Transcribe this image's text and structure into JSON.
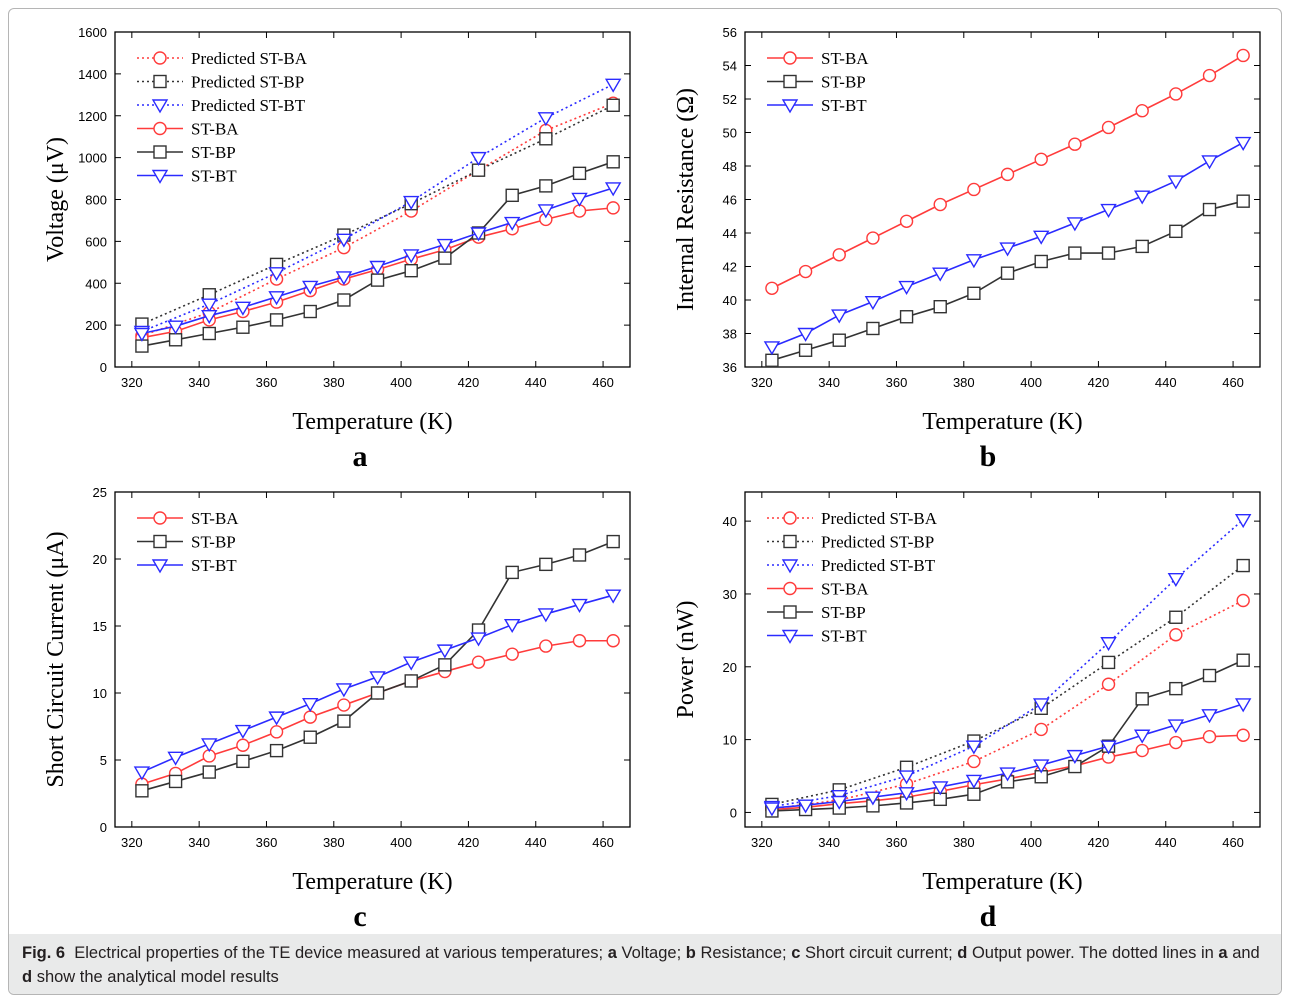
{
  "figure": {
    "panel_letters": [
      "a",
      "b",
      "c",
      "d"
    ],
    "caption": {
      "fig_label": "Fig. 6",
      "intro": "Electrical properties of the TE device measured at various temperatures;",
      "a_key": "a",
      "a_text": "Voltage;",
      "b_key": "b",
      "b_text": "Resistance;",
      "c_key": "c",
      "c_text": "Short circuit current;",
      "d_key": "d",
      "d_text": "Output power. The dotted lines in",
      "a2_key": "a",
      "and_text": "and",
      "d2_key": "d",
      "end_text": "show the analytical model results"
    }
  },
  "colors": {
    "ST-BA": "#ff3b3b",
    "ST-BP": "#333333",
    "ST-BT": "#2b2bff"
  },
  "chart_data": [
    {
      "type": "line",
      "panel": "a",
      "xlabel": "Temperature (K)",
      "ylabel": "Voltage (μV)",
      "xlim": [
        315,
        468
      ],
      "ylim": [
        0,
        1600
      ],
      "xticks": [
        320,
        340,
        360,
        380,
        400,
        420,
        440,
        460
      ],
      "yticks": [
        0,
        200,
        400,
        600,
        800,
        1000,
        1200,
        1400,
        1600
      ],
      "legend": "top-left",
      "series": [
        {
          "name": "Predicted ST-BA",
          "style": "dotted",
          "marker": "circle",
          "color": "ST-BA",
          "x": [
            323,
            343,
            363,
            383,
            403,
            423,
            443,
            463
          ],
          "y": [
            150,
            260,
            420,
            570,
            745,
            940,
            1130,
            1260
          ]
        },
        {
          "name": "Predicted ST-BP",
          "style": "dotted",
          "marker": "square",
          "color": "ST-BP",
          "x": [
            323,
            343,
            363,
            383,
            403,
            423,
            443,
            463
          ],
          "y": [
            205,
            345,
            490,
            630,
            780,
            940,
            1090,
            1250
          ]
        },
        {
          "name": "Predicted ST-BT",
          "style": "dotted",
          "marker": "triangle",
          "color": "ST-BT",
          "x": [
            323,
            343,
            363,
            383,
            403,
            423,
            443,
            463
          ],
          "y": [
            170,
            300,
            450,
            610,
            790,
            1000,
            1190,
            1350
          ]
        },
        {
          "name": "ST-BA",
          "style": "solid",
          "marker": "circle",
          "color": "ST-BA",
          "x": [
            323,
            333,
            343,
            353,
            363,
            373,
            383,
            393,
            403,
            413,
            423,
            433,
            443,
            453,
            463
          ],
          "y": [
            140,
            170,
            225,
            265,
            310,
            365,
            420,
            465,
            515,
            560,
            620,
            660,
            705,
            745,
            760
          ]
        },
        {
          "name": "ST-BP",
          "style": "solid",
          "marker": "square",
          "color": "ST-BP",
          "x": [
            323,
            333,
            343,
            353,
            363,
            373,
            383,
            393,
            403,
            413,
            423,
            433,
            443,
            453,
            463
          ],
          "y": [
            100,
            130,
            160,
            190,
            225,
            265,
            320,
            415,
            460,
            520,
            640,
            820,
            865,
            925,
            980
          ]
        },
        {
          "name": "ST-BT",
          "style": "solid",
          "marker": "triangle",
          "color": "ST-BT",
          "x": [
            323,
            333,
            343,
            353,
            363,
            373,
            383,
            393,
            403,
            413,
            423,
            433,
            443,
            453,
            463
          ],
          "y": [
            160,
            195,
            245,
            285,
            335,
            385,
            430,
            480,
            535,
            585,
            640,
            690,
            750,
            805,
            855
          ]
        }
      ]
    },
    {
      "type": "line",
      "panel": "b",
      "xlabel": "Temperature (K)",
      "ylabel": "Internal Resistance (Ω)",
      "xlim": [
        315,
        468
      ],
      "ylim": [
        36,
        56
      ],
      "xticks": [
        320,
        340,
        360,
        380,
        400,
        420,
        440,
        460
      ],
      "yticks": [
        36,
        38,
        40,
        42,
        44,
        46,
        48,
        50,
        52,
        54,
        56
      ],
      "legend": "top-left",
      "series": [
        {
          "name": "ST-BA",
          "style": "solid",
          "marker": "circle",
          "color": "ST-BA",
          "x": [
            323,
            333,
            343,
            353,
            363,
            373,
            383,
            393,
            403,
            413,
            423,
            433,
            443,
            453,
            463
          ],
          "y": [
            40.7,
            41.7,
            42.7,
            43.7,
            44.7,
            45.7,
            46.6,
            47.5,
            48.4,
            49.3,
            50.3,
            51.3,
            52.3,
            53.4,
            54.6
          ]
        },
        {
          "name": "ST-BP",
          "style": "solid",
          "marker": "square",
          "color": "ST-BP",
          "x": [
            323,
            333,
            343,
            353,
            363,
            373,
            383,
            393,
            403,
            413,
            423,
            433,
            443,
            453,
            463
          ],
          "y": [
            36.4,
            37.0,
            37.6,
            38.3,
            39.0,
            39.6,
            40.4,
            41.6,
            42.3,
            42.8,
            42.8,
            43.2,
            44.1,
            45.4,
            45.9
          ]
        },
        {
          "name": "ST-BT",
          "style": "solid",
          "marker": "triangle",
          "color": "ST-BT",
          "x": [
            323,
            333,
            343,
            353,
            363,
            373,
            383,
            393,
            403,
            413,
            423,
            433,
            443,
            453,
            463
          ],
          "y": [
            37.2,
            38.0,
            39.1,
            39.9,
            40.8,
            41.6,
            42.4,
            43.1,
            43.8,
            44.6,
            45.4,
            46.2,
            47.1,
            48.3,
            49.4
          ]
        }
      ]
    },
    {
      "type": "line",
      "panel": "c",
      "xlabel": "Temperature (K)",
      "ylabel": "Short Circuit Current (μA)",
      "xlim": [
        315,
        468
      ],
      "ylim": [
        0,
        25
      ],
      "xticks": [
        320,
        340,
        360,
        380,
        400,
        420,
        440,
        460
      ],
      "yticks": [
        0,
        5,
        10,
        15,
        20,
        25
      ],
      "legend": "top-left",
      "series": [
        {
          "name": "ST-BA",
          "style": "solid",
          "marker": "circle",
          "color": "ST-BA",
          "x": [
            323,
            333,
            343,
            353,
            363,
            373,
            383,
            393,
            403,
            413,
            423,
            433,
            443,
            453,
            463
          ],
          "y": [
            3.2,
            4.0,
            5.3,
            6.1,
            7.1,
            8.2,
            9.1,
            10.0,
            10.9,
            11.6,
            12.3,
            12.9,
            13.5,
            13.9,
            13.9
          ]
        },
        {
          "name": "ST-BP",
          "style": "solid",
          "marker": "square",
          "color": "ST-BP",
          "x": [
            323,
            333,
            343,
            353,
            363,
            373,
            383,
            393,
            403,
            413,
            423,
            433,
            443,
            453,
            463
          ],
          "y": [
            2.7,
            3.4,
            4.1,
            4.9,
            5.7,
            6.7,
            7.9,
            10.0,
            10.9,
            12.1,
            14.7,
            19.0,
            19.6,
            20.3,
            21.3
          ]
        },
        {
          "name": "ST-BT",
          "style": "solid",
          "marker": "triangle",
          "color": "ST-BT",
          "x": [
            323,
            333,
            343,
            353,
            363,
            373,
            383,
            393,
            403,
            413,
            423,
            433,
            443,
            453,
            463
          ],
          "y": [
            4.1,
            5.2,
            6.2,
            7.2,
            8.2,
            9.2,
            10.3,
            11.2,
            12.3,
            13.2,
            14.1,
            15.1,
            15.9,
            16.6,
            17.3
          ]
        }
      ]
    },
    {
      "type": "line",
      "panel": "d",
      "xlabel": "Temperature (K)",
      "ylabel": "Power (nW)",
      "xlim": [
        315,
        468
      ],
      "ylim": [
        -2,
        44
      ],
      "xticks": [
        320,
        340,
        360,
        380,
        400,
        420,
        440,
        460
      ],
      "yticks": [
        0,
        10,
        20,
        30,
        40
      ],
      "legend": "top-left",
      "series": [
        {
          "name": "Predicted ST-BA",
          "style": "dotted",
          "marker": "circle",
          "color": "ST-BA",
          "x": [
            323,
            343,
            363,
            383,
            403,
            423,
            443,
            463
          ],
          "y": [
            0.5,
            1.7,
            3.9,
            7.0,
            11.4,
            17.6,
            24.4,
            29.1
          ]
        },
        {
          "name": "Predicted ST-BP",
          "style": "dotted",
          "marker": "square",
          "color": "ST-BP",
          "x": [
            323,
            343,
            363,
            383,
            403,
            423,
            443,
            463
          ],
          "y": [
            1.1,
            3.1,
            6.2,
            9.8,
            14.3,
            20.6,
            26.8,
            33.9
          ]
        },
        {
          "name": "Predicted ST-BT",
          "style": "dotted",
          "marker": "triangle",
          "color": "ST-BT",
          "x": [
            323,
            343,
            363,
            383,
            403,
            423,
            443,
            463
          ],
          "y": [
            0.8,
            2.3,
            5.0,
            9.1,
            14.9,
            23.3,
            32.1,
            40.2
          ]
        },
        {
          "name": "ST-BA",
          "style": "solid",
          "marker": "circle",
          "color": "ST-BA",
          "x": [
            323,
            333,
            343,
            353,
            363,
            373,
            383,
            393,
            403,
            413,
            423,
            433,
            443,
            453,
            463
          ],
          "y": [
            0.4,
            0.7,
            1.2,
            1.6,
            2.1,
            2.9,
            3.8,
            4.6,
            5.5,
            6.4,
            7.6,
            8.5,
            9.6,
            10.4,
            10.6
          ]
        },
        {
          "name": "ST-BP",
          "style": "solid",
          "marker": "square",
          "color": "ST-BP",
          "x": [
            323,
            333,
            343,
            353,
            363,
            373,
            383,
            393,
            403,
            413,
            423,
            433,
            443,
            453,
            463
          ],
          "y": [
            0.2,
            0.4,
            0.6,
            0.9,
            1.3,
            1.8,
            2.5,
            4.2,
            4.9,
            6.3,
            9.1,
            15.6,
            17.0,
            18.8,
            20.9
          ]
        },
        {
          "name": "ST-BT",
          "style": "solid",
          "marker": "triangle",
          "color": "ST-BT",
          "x": [
            323,
            333,
            343,
            353,
            363,
            373,
            383,
            393,
            403,
            413,
            423,
            433,
            443,
            453,
            463
          ],
          "y": [
            0.6,
            1.0,
            1.5,
            2.1,
            2.7,
            3.5,
            4.4,
            5.4,
            6.5,
            7.8,
            9.1,
            10.6,
            12.0,
            13.4,
            14.9
          ]
        }
      ]
    }
  ]
}
